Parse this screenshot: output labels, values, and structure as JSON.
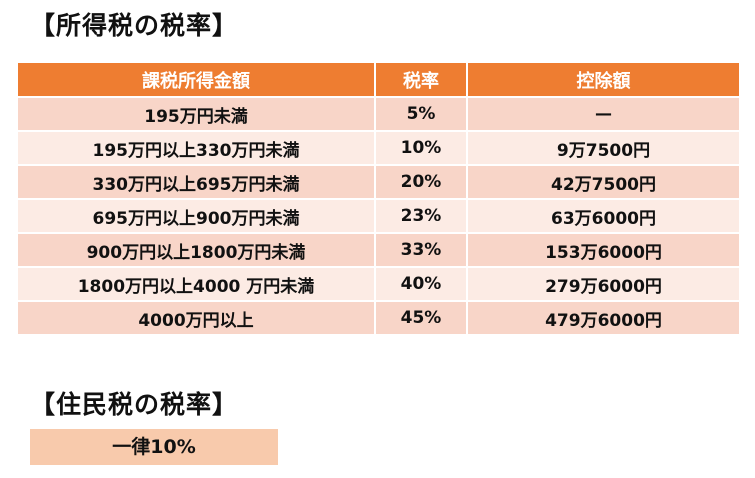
{
  "income_tax": {
    "heading": "【所得税の税率】",
    "columns": [
      "課税所得金額",
      "税率",
      "控除額"
    ],
    "rows": [
      {
        "range": "195万円未満",
        "rate": "5%",
        "deduction": "—"
      },
      {
        "range": "195万円以上330万円未満",
        "rate": "10%",
        "deduction": "9万7500円"
      },
      {
        "range": "330万円以上695万円未満",
        "rate": "20%",
        "deduction": "42万7500円"
      },
      {
        "range": "695万円以上900万円未満",
        "rate": "23%",
        "deduction": "63万6000円"
      },
      {
        "range": "900万円以上1800万円未満",
        "rate": "33%",
        "deduction": "153万6000円"
      },
      {
        "range": "1800万円以上4000 万円未満",
        "rate": "40%",
        "deduction": "279万6000円"
      },
      {
        "range": "4000万円以上",
        "rate": "45%",
        "deduction": "479万6000円"
      }
    ]
  },
  "resident_tax": {
    "heading": "【住民税の税率】",
    "flat_rate": "一律10%"
  },
  "colors": {
    "header_bg": "#ee7d31",
    "row_dark": "#f8d5c8",
    "row_light": "#fcebe4",
    "flat_box_bg": "#f8caac"
  }
}
